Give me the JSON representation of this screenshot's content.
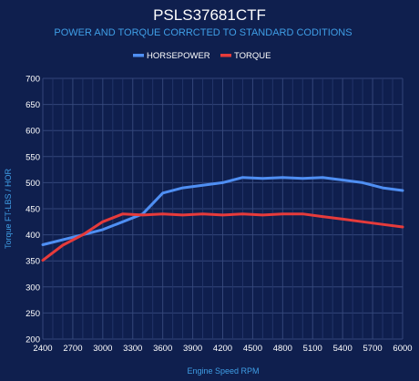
{
  "chart_data": {
    "type": "line",
    "title": "PSLS37681CTF",
    "subtitle": "POWER AND TORQUE CORRCTED TO STANDARD CODITIONS",
    "xlabel": "Engine Speed RPM",
    "ylabel": "Torque FT-LBS / HOR",
    "x_ticks": [
      "2400",
      "2700",
      "3000",
      "3300",
      "3600",
      "3900",
      "4200",
      "4500",
      "4800",
      "5100",
      "5400",
      "5700",
      "6000"
    ],
    "xlim": [
      2400,
      6000
    ],
    "ylim": [
      200,
      700
    ],
    "y_ticks": [
      "200",
      "250",
      "300",
      "350",
      "400",
      "450",
      "500",
      "550",
      "600",
      "650",
      "700"
    ],
    "grid": true,
    "legend_position": "top",
    "series": [
      {
        "name": "HORSEPOWER",
        "color": "#4f8ff3",
        "x": [
          2400,
          2800,
          3000,
          3400,
          3600,
          3800,
          4000,
          4200,
          4400,
          4600,
          4800,
          5000,
          5200,
          5400,
          5600,
          5800,
          6000
        ],
        "y": [
          381,
          400,
          410,
          440,
          480,
          490,
          495,
          500,
          510,
          508,
          510,
          508,
          510,
          505,
          500,
          490,
          485
        ]
      },
      {
        "name": "TORQUE",
        "color": "#e63b3b",
        "x": [
          2400,
          2600,
          2800,
          3000,
          3200,
          3400,
          3600,
          3800,
          4000,
          4200,
          4400,
          4600,
          4800,
          5000,
          5200,
          5400,
          5600,
          5800,
          6000
        ],
        "y": [
          351,
          380,
          400,
          425,
          440,
          438,
          440,
          438,
          440,
          438,
          440,
          438,
          440,
          440,
          435,
          430,
          425,
          420,
          415
        ]
      }
    ]
  }
}
